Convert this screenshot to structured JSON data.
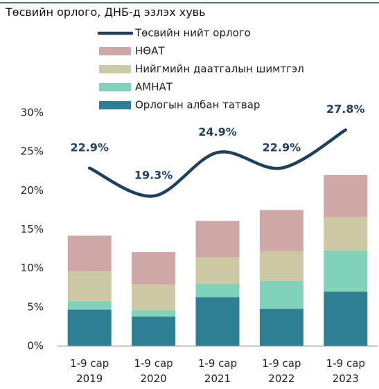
{
  "chart_data": {
    "type": "bar",
    "title": "Төсвийн орлого, ДНБ-д эзлэх хувь",
    "categories": [
      "1-9 сар 2019",
      "1-9 сар 2020",
      "1-9 сар 2021",
      "1-9 сар 2022",
      "1-9 сар 2023"
    ],
    "stacked": true,
    "series": [
      {
        "name": "Орлогын албан татвар",
        "color": "#2e7f93",
        "values": [
          4.7,
          3.8,
          6.3,
          4.8,
          7.0
        ]
      },
      {
        "name": "АМНАТ",
        "color": "#80d3ba",
        "values": [
          1.1,
          0.8,
          1.7,
          3.6,
          5.3
        ]
      },
      {
        "name": "Нийгмийн даатгалын шимтгэл",
        "color": "#ccc9a4",
        "values": [
          3.8,
          3.3,
          3.4,
          3.8,
          4.3
        ]
      },
      {
        "name": "НӨАТ",
        "color": "#cfa7a6",
        "values": [
          4.6,
          4.2,
          4.7,
          5.3,
          5.4
        ]
      },
      {
        "name": "Төсвийн нийт орлого",
        "type": "line",
        "color": "#1f3f5a",
        "values": [
          22.9,
          19.3,
          24.9,
          22.9,
          27.8
        ],
        "value_labels": [
          "22.9%",
          "19.3%",
          "24.9%",
          "22.9%",
          "27.8%"
        ]
      }
    ],
    "ylim": [
      0,
      30
    ],
    "yticks": [
      {
        "value": 0,
        "label": "0%"
      },
      {
        "value": 5,
        "label": "5%"
      },
      {
        "value": 10,
        "label": "10%"
      },
      {
        "value": 15,
        "label": "15%"
      },
      {
        "value": 20,
        "label": "20%"
      },
      {
        "value": 25,
        "label": "25%"
      },
      {
        "value": 30,
        "label": "30%"
      }
    ]
  }
}
